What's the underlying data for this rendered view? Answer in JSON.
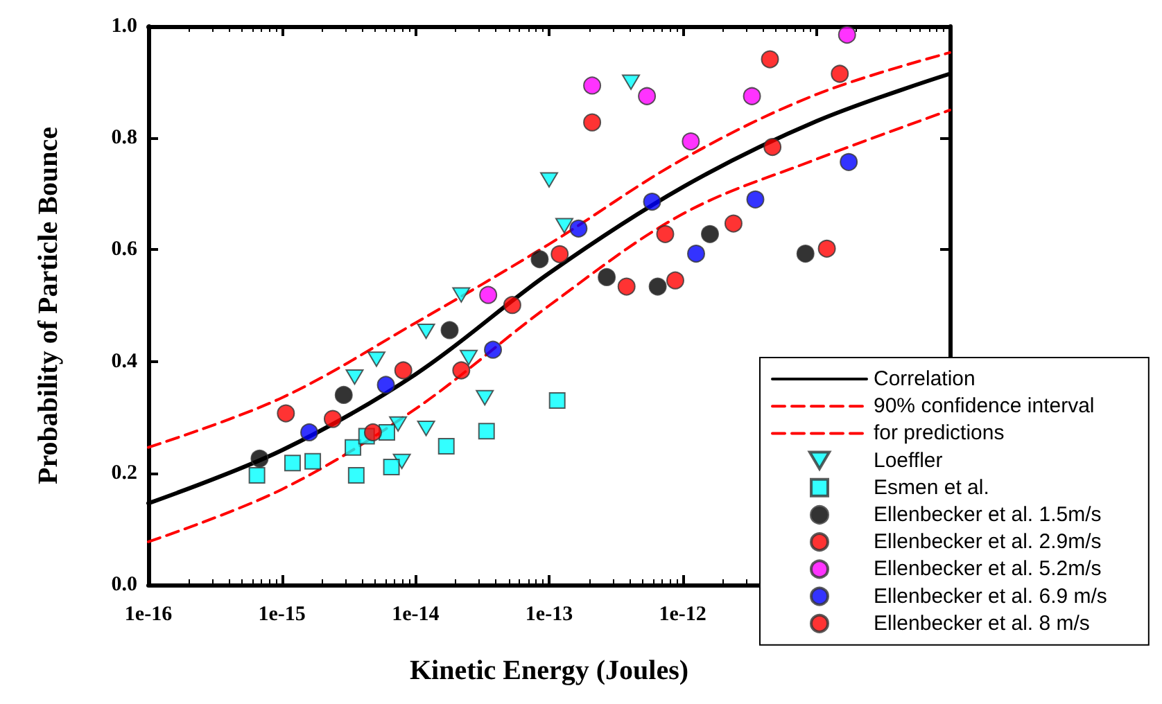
{
  "chart_data": {
    "type": "scatter",
    "xlabel": "Kinetic Energy (Joules)",
    "ylabel": "Probability of Particle Bounce",
    "log": "x",
    "xlim": [
      1e-16,
      1e-10
    ],
    "ylim": [
      0,
      1
    ],
    "xticks": [
      {
        "value": 1e-16,
        "label": "1e-16"
      },
      {
        "value": 1e-15,
        "label": "1e-15"
      },
      {
        "value": 1e-14,
        "label": "1e-14"
      },
      {
        "value": 1e-13,
        "label": "1e-13"
      },
      {
        "value": 1e-12,
        "label": "1e-12"
      },
      {
        "value": 1e-11,
        "label": null
      },
      {
        "value": 1e-10,
        "label": null
      }
    ],
    "yticks": [
      {
        "value": 0,
        "label": "0.0"
      },
      {
        "value": 0.2,
        "label": "0.2"
      },
      {
        "value": 0.4,
        "label": "0.4"
      },
      {
        "value": 0.6,
        "label": "0.6"
      },
      {
        "value": 0.8,
        "label": "0.8"
      },
      {
        "value": 1,
        "label": "1.0"
      }
    ],
    "grid": false,
    "legend": "bottom right",
    "series": [
      {
        "name": "Correlation",
        "type": "line",
        "line_style": "solid",
        "color": "#000000",
        "x": [
          1e-16,
          1e-15,
          1e-14,
          1e-13,
          1e-12,
          1e-11,
          1e-10
        ],
        "values": [
          0.146,
          0.241,
          0.377,
          0.558,
          0.712,
          0.83,
          0.915
        ]
      },
      {
        "name": "90% confidence interval",
        "type": "line",
        "line_style": "dashed",
        "color": "#ff0000",
        "x": [
          1e-16,
          1e-15,
          1e-14,
          1e-13,
          1e-12,
          1e-11,
          1e-10
        ],
        "values": [
          0.246,
          0.335,
          0.469,
          0.61,
          0.762,
          0.878,
          0.953
        ]
      },
      {
        "name": "for predictions",
        "type": "line",
        "line_style": "dashed",
        "color": "#ff0000",
        "x": [
          1e-16,
          1e-15,
          1e-14,
          1e-13,
          1e-12,
          1e-11,
          1e-10
        ],
        "values": [
          0.077,
          0.171,
          0.315,
          0.5,
          0.664,
          0.762,
          0.85
        ]
      },
      {
        "name": "Loeffler",
        "marker": "triangle",
        "color": "#00ffff",
        "x": [
          3.5e-15,
          5.1e-15,
          1.2e-14,
          2.2e-14,
          2.5e-14,
          7.4e-15,
          7.9e-15,
          1.2e-14,
          3.3e-14,
          1e-13,
          1.3e-13,
          4.1e-13
        ],
        "values": [
          0.372,
          0.404,
          0.454,
          0.519,
          0.407,
          0.288,
          0.221,
          0.28,
          0.335,
          0.725,
          0.643,
          0.9
        ]
      },
      {
        "name": "Esmen et al.",
        "marker": "square",
        "color": "#00ffff",
        "x": [
          6.5e-16,
          1.2e-15,
          1.7e-15,
          3.4e-15,
          3.6e-15,
          4.3e-15,
          6.1e-15,
          6.6e-15,
          1.7e-14,
          3.4e-14,
          1.15e-13
        ],
        "values": [
          0.196,
          0.218,
          0.221,
          0.246,
          0.196,
          0.266,
          0.273,
          0.211,
          0.248,
          0.275,
          0.33
        ]
      },
      {
        "name": "Ellenbecker et al. 1.5m/s",
        "marker": "circle",
        "color": "#000000",
        "x": [
          6.8e-16,
          2.9e-15,
          1.8e-14,
          8.5e-14,
          2.7e-13,
          6.5e-13,
          1.6e-12,
          8.3e-12
        ],
        "values": [
          0.226,
          0.34,
          0.456,
          0.583,
          0.551,
          0.534,
          0.628,
          0.593
        ]
      },
      {
        "name": "Ellenbecker et al. 2.9m/s",
        "marker": "circle",
        "color": "#ff0000",
        "x": [
          1.07e-15,
          4.8e-15,
          2.2e-14,
          1.2e-13,
          3.8e-13,
          8.8e-13,
          2.4e-12,
          4.7e-12
        ],
        "values": [
          0.307,
          0.273,
          0.384,
          0.592,
          0.534,
          0.545,
          0.647,
          0.784
        ]
      },
      {
        "name": "Ellenbecker et al. 5.2m/s",
        "marker": "circle",
        "color": "#ff00ff",
        "x": [
          3.5e-14,
          2.1e-13,
          5.4e-13,
          1.15e-12,
          3.3e-12,
          1.7e-11
        ],
        "values": [
          0.519,
          0.894,
          0.875,
          0.794,
          0.875,
          0.985
        ]
      },
      {
        "name": "Ellenbecker et al. 6.9 m/s",
        "marker": "circle",
        "color": "#0000ff",
        "x": [
          1.6e-15,
          6e-15,
          3.8e-14,
          1.66e-13,
          5.9e-13,
          1.26e-12,
          3.5e-12,
          1.75e-11
        ],
        "values": [
          0.273,
          0.358,
          0.421,
          0.638,
          0.686,
          0.593,
          0.69,
          0.757
        ]
      },
      {
        "name": "Ellenbecker et al. 8 m/s",
        "marker": "circle",
        "color": "#ff0000",
        "x": [
          2.4e-15,
          8.1e-15,
          5.3e-14,
          2.1e-13,
          7.4e-13,
          4.5e-12,
          1.5e-11,
          1.2e-11
        ],
        "values": [
          0.297,
          0.384,
          0.501,
          0.828,
          0.628,
          0.941,
          0.915,
          0.602
        ]
      }
    ]
  }
}
